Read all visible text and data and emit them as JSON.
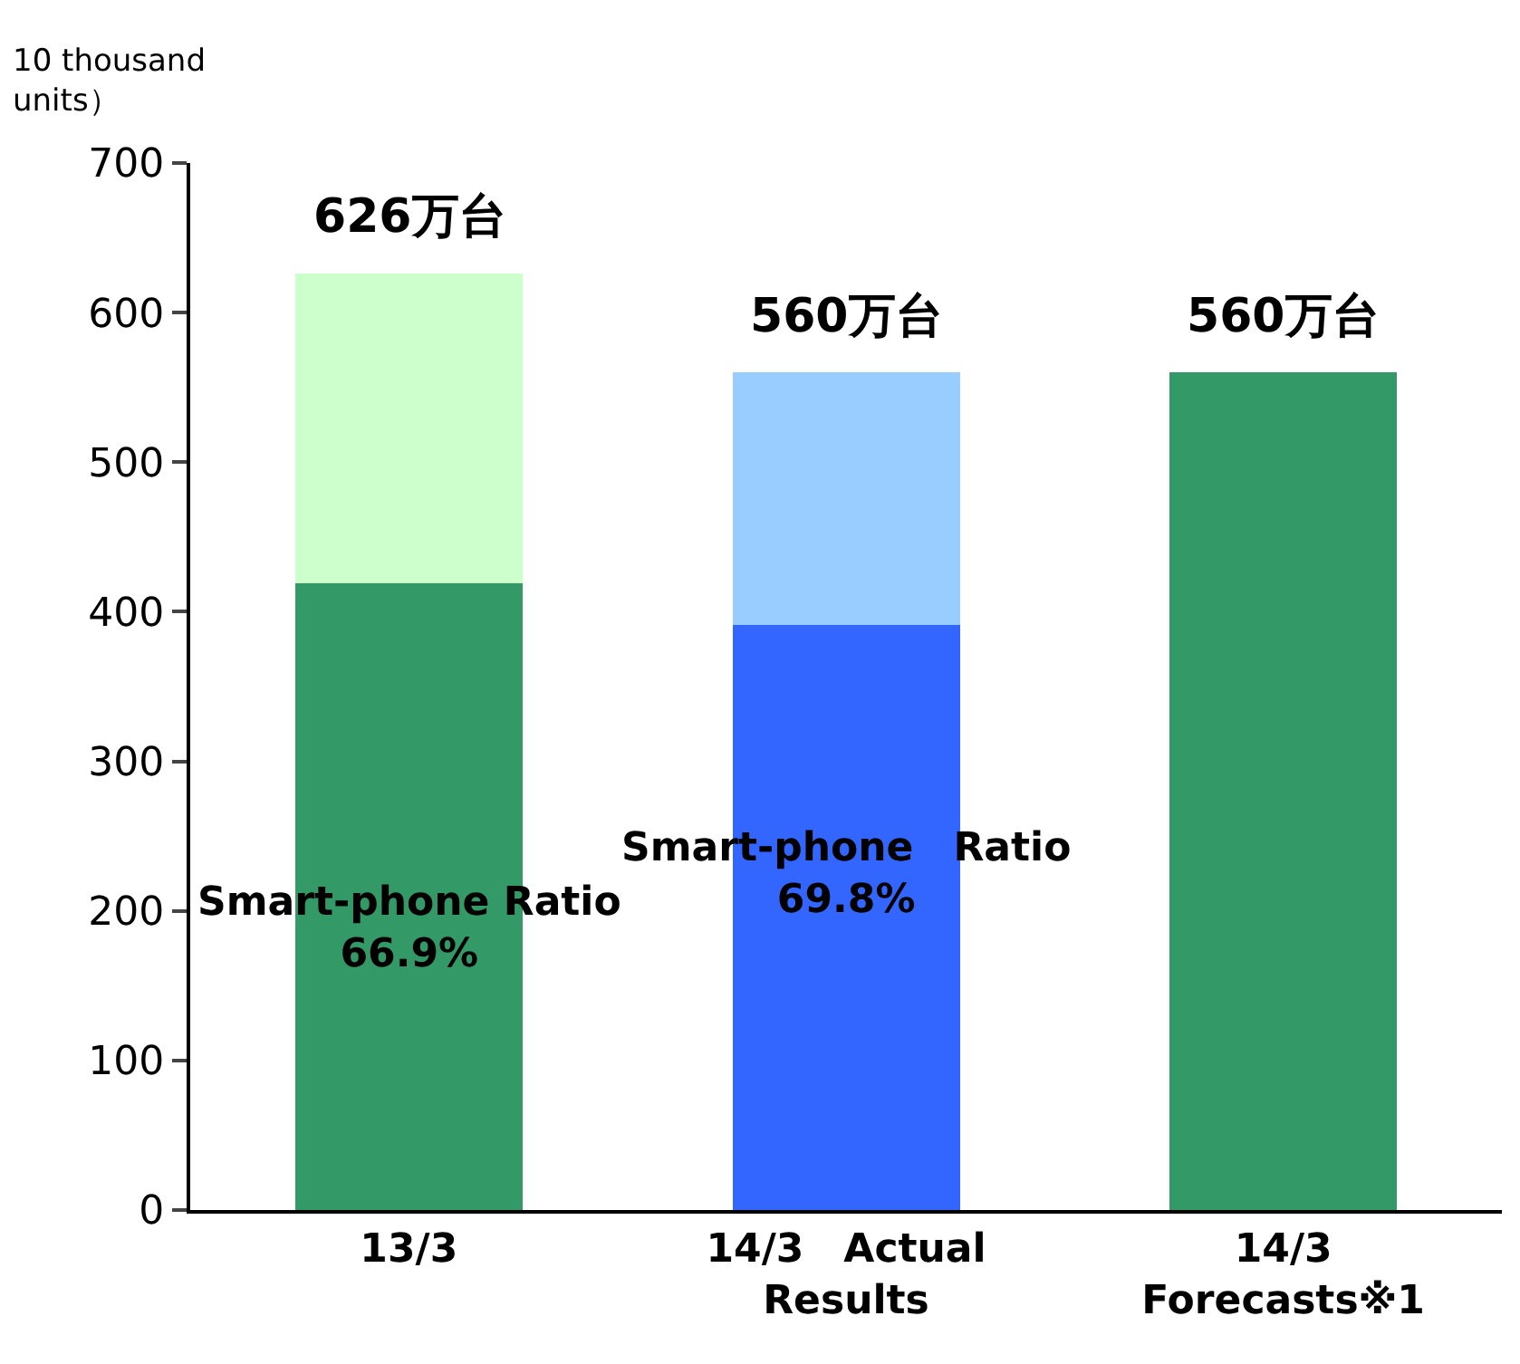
{
  "chart_data": {
    "type": "bar",
    "stacked": true,
    "ylabel": "10 thousand\nunits）",
    "categories": [
      "13/3",
      "14/3　Actual\nResults",
      "14/3\nForecasts※1"
    ],
    "series": [
      {
        "colors": [
          "#339966",
          "#3366ff",
          "#339966"
        ],
        "values": [
          419,
          391,
          560
        ]
      },
      {
        "colors": [
          "#ccffcc",
          "#99ccff",
          "#339966"
        ],
        "values": [
          207,
          169,
          null
        ]
      }
    ],
    "totals": [
      "626万台",
      "560万台",
      "560万台"
    ],
    "annotations": [
      "Smart-phone Ratio\n66.9%",
      "Smart-phone　Ratio\n69.8%"
    ],
    "ylim": [
      0,
      700
    ],
    "yticks": [
      0,
      100,
      200,
      300,
      400,
      500,
      600,
      700
    ]
  }
}
